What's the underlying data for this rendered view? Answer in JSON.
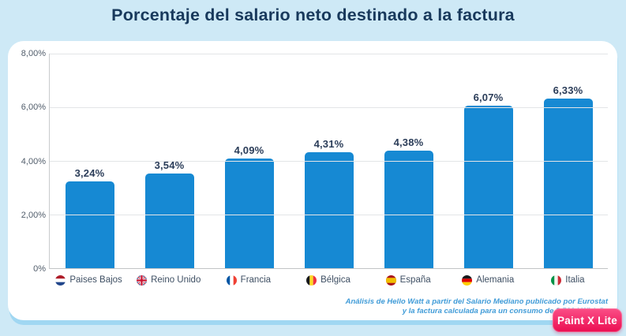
{
  "page_title": "Porcentaje del salario neto destinado a la factura",
  "footnote": {
    "line1": "Análisis de Hello Watt a partir del Salario Mediano publicado por Eurostat",
    "line2": "y la factura calculada para un consumo de 3.500 kWh/año"
  },
  "watermark_label": "Paint X Lite",
  "colors": {
    "bar": "#1689d3",
    "page_background": "#cee9f6",
    "card_background": "#ffffff",
    "title_text": "#18395c",
    "value_label_text": "#2b3d59",
    "footnote_text": "#419cd8",
    "watermark_background": "#ee1256"
  },
  "chart_data": {
    "type": "bar",
    "title": "Porcentaje del salario neto destinado a la factura",
    "categories": [
      "Paises Bajos",
      "Reino Unido",
      "Francia",
      "Bélgica",
      "España",
      "Alemania",
      "Italia"
    ],
    "values": [
      3.24,
      3.54,
      4.09,
      4.31,
      4.38,
      6.07,
      6.33
    ],
    "value_labels": [
      "3,24%",
      "3,54%",
      "4,09%",
      "4,31%",
      "4,38%",
      "6,07%",
      "6,33%"
    ],
    "flags": [
      "nl",
      "uk",
      "fr",
      "be",
      "es",
      "de",
      "it"
    ],
    "xlabel": "",
    "ylabel": "",
    "ylim": [
      0,
      8
    ],
    "yticks": [
      {
        "value": 8,
        "label": "8,00%"
      },
      {
        "value": 6,
        "label": "6,00%"
      },
      {
        "value": 4,
        "label": "4,00%"
      },
      {
        "value": 2,
        "label": "2,00%"
      },
      {
        "value": 0,
        "label": "0%"
      }
    ],
    "grid": true,
    "legend": false,
    "source_note": "Análisis de Hello Watt a partir del Salario Mediano publicado por Eurostat y la factura calculada para un consumo de 3.500 kWh/año"
  }
}
